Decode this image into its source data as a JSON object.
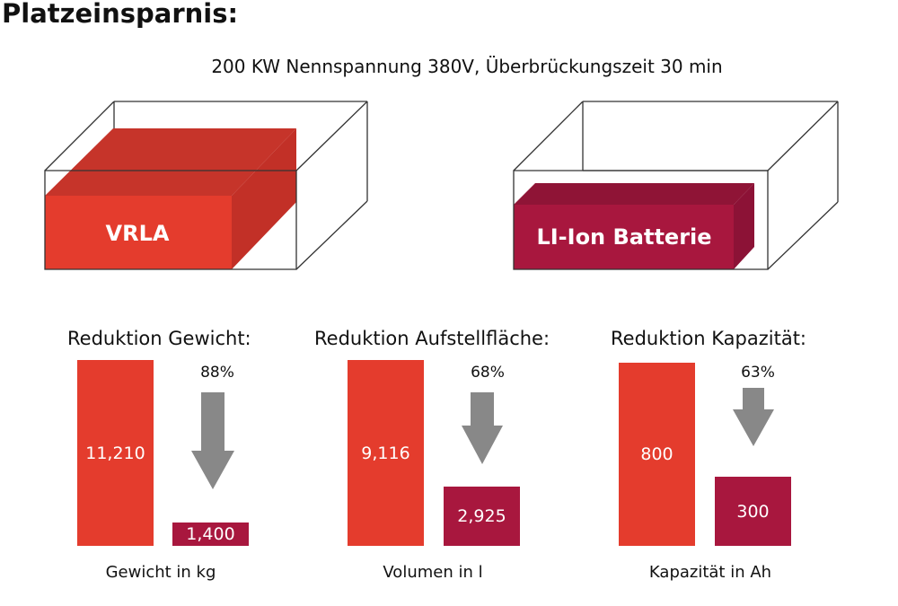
{
  "title": "Platzeinsparnis:",
  "subtitle": "200 KW Nennspannung 380V, Überbrückungszeit 30 min",
  "colors": {
    "vrla": "#e43c2d",
    "li_ion": "#a8173e",
    "arrow": "#888888"
  },
  "boxes": {
    "left_label": "VRLA",
    "right_label": "LI-Ion Batterie"
  },
  "chart_data": [
    {
      "type": "bar",
      "title": "Reduktion Gewicht:",
      "categories": [
        "VRLA",
        "LI-Ion Batterie"
      ],
      "values": [
        11210,
        1400
      ],
      "value_labels": [
        "11,210",
        "1,400"
      ],
      "reduction": "88%",
      "xlabel": "Gewicht in kg"
    },
    {
      "type": "bar",
      "title": "Reduktion Aufstellfläche:",
      "categories": [
        "VRLA",
        "LI-Ion Batterie"
      ],
      "values": [
        9116,
        2925
      ],
      "value_labels": [
        "9,116",
        "2,925"
      ],
      "reduction": "68%",
      "xlabel": "Volumen in l"
    },
    {
      "type": "bar",
      "title": "Reduktion Kapazität:",
      "categories": [
        "VRLA",
        "LI-Ion Batterie"
      ],
      "values": [
        800,
        300
      ],
      "value_labels": [
        "800",
        "300"
      ],
      "reduction": "63%",
      "xlabel": "Kapazität in Ah"
    }
  ]
}
